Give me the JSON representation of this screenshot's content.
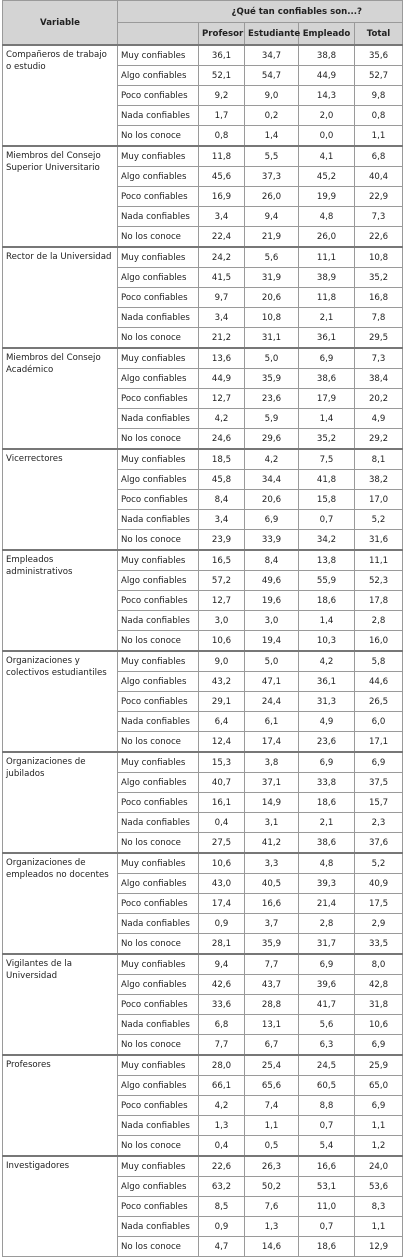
{
  "table": {
    "header": {
      "variable": "Variable",
      "question": "¿Qué tan confiables son...?",
      "columns": [
        "Profesor",
        "Estudiante",
        "Empleado",
        "Total"
      ]
    },
    "groups": [
      {
        "name": "Compañeros de trabajo o estudio",
        "rows": [
          [
            "Muy confiables",
            "36,1",
            "34,7",
            "38,8",
            "35,6"
          ],
          [
            "Algo confiables",
            "52,1",
            "54,7",
            "44,9",
            "52,7"
          ],
          [
            "Poco confiables",
            "9,2",
            "9,0",
            "14,3",
            "9,8"
          ],
          [
            "Nada confiables",
            "1,7",
            "0,2",
            "2,0",
            "0,8"
          ],
          [
            "No los conoce",
            "0,8",
            "1,4",
            "0,0",
            "1,1"
          ]
        ]
      },
      {
        "name": "Miembros del Consejo Superior Universitario",
        "rows": [
          [
            "Muy confiables",
            "11,8",
            "5,5",
            "4,1",
            "6,8"
          ],
          [
            "Algo confiables",
            "45,6",
            "37,3",
            "45,2",
            "40,4"
          ],
          [
            "Poco confiables",
            "16,9",
            "26,0",
            "19,9",
            "22,9"
          ],
          [
            "Nada confiables",
            "3,4",
            "9,4",
            "4,8",
            "7,3"
          ],
          [
            "No los conoce",
            "22,4",
            "21,9",
            "26,0",
            "22,6"
          ]
        ]
      },
      {
        "name": "Rector de la Universidad",
        "rows": [
          [
            "Muy confiables",
            "24,2",
            "5,6",
            "11,1",
            "10,8"
          ],
          [
            "Algo confiables",
            "41,5",
            "31,9",
            "38,9",
            "35,2"
          ],
          [
            "Poco confiables",
            "9,7",
            "20,6",
            "11,8",
            "16,8"
          ],
          [
            "Nada confiables",
            "3,4",
            "10,8",
            "2,1",
            "7,8"
          ],
          [
            "No los conoce",
            "21,2",
            "31,1",
            "36,1",
            "29,5"
          ]
        ]
      },
      {
        "name": "Miembros del Consejo Académico",
        "rows": [
          [
            "Muy confiables",
            "13,6",
            "5,0",
            "6,9",
            "7,3"
          ],
          [
            "Algo confiables",
            "44,9",
            "35,9",
            "38,6",
            "38,4"
          ],
          [
            "Poco confiables",
            "12,7",
            "23,6",
            "17,9",
            "20,2"
          ],
          [
            "Nada confiables",
            "4,2",
            "5,9",
            "1,4",
            "4,9"
          ],
          [
            "No los conoce",
            "24,6",
            "29,6",
            "35,2",
            "29,2"
          ]
        ]
      },
      {
        "name": "Vicerrectores",
        "rows": [
          [
            "Muy confiables",
            "18,5",
            "4,2",
            "7,5",
            "8,1"
          ],
          [
            "Algo confiables",
            "45,8",
            "34,4",
            "41,8",
            "38,2"
          ],
          [
            "Poco confiables",
            "8,4",
            "20,6",
            "15,8",
            "17,0"
          ],
          [
            "Nada confiables",
            "3,4",
            "6,9",
            "0,7",
            "5,2"
          ],
          [
            "No los conoce",
            "23,9",
            "33,9",
            "34,2",
            "31,6"
          ]
        ]
      },
      {
        "name": "Empleados administrativos",
        "rows": [
          [
            "Muy confiables",
            "16,5",
            "8,4",
            "13,8",
            "11,1"
          ],
          [
            "Algo confiables",
            "57,2",
            "49,6",
            "55,9",
            "52,3"
          ],
          [
            "Poco confiables",
            "12,7",
            "19,6",
            "18,6",
            "17,8"
          ],
          [
            "Nada confiables",
            "3,0",
            "3,0",
            "1,4",
            "2,8"
          ],
          [
            "No los conoce",
            "10,6",
            "19,4",
            "10,3",
            "16,0"
          ]
        ]
      },
      {
        "name": "Organizaciones y colectivos estudiantiles",
        "rows": [
          [
            "Muy confiables",
            "9,0",
            "5,0",
            "4,2",
            "5,8"
          ],
          [
            "Algo confiables",
            "43,2",
            "47,1",
            "36,1",
            "44,6"
          ],
          [
            "Poco confiables",
            "29,1",
            "24,4",
            "31,3",
            "26,5"
          ],
          [
            "Nada confiables",
            "6,4",
            "6,1",
            "4,9",
            "6,0"
          ],
          [
            "No los conoce",
            "12,4",
            "17,4",
            "23,6",
            "17,1"
          ]
        ]
      },
      {
        "name": "Organizaciones de jubilados",
        "rows": [
          [
            "Muy confiables",
            "15,3",
            "3,8",
            "6,9",
            "6,9"
          ],
          [
            "Algo confiables",
            "40,7",
            "37,1",
            "33,8",
            "37,5"
          ],
          [
            "Poco confiables",
            "16,1",
            "14,9",
            "18,6",
            "15,7"
          ],
          [
            "Nada confiables",
            "0,4",
            "3,1",
            "2,1",
            "2,3"
          ],
          [
            "No los conoce",
            "27,5",
            "41,2",
            "38,6",
            "37,6"
          ]
        ]
      },
      {
        "name": "Organizaciones de empleados no docentes",
        "rows": [
          [
            "Muy confiables",
            "10,6",
            "3,3",
            "4,8",
            "5,2"
          ],
          [
            "Algo confiables",
            "43,0",
            "40,5",
            "39,3",
            "40,9"
          ],
          [
            "Poco confiables",
            "17,4",
            "16,6",
            "21,4",
            "17,5"
          ],
          [
            "Nada confiables",
            "0,9",
            "3,7",
            "2,8",
            "2,9"
          ],
          [
            "No los conoce",
            "28,1",
            "35,9",
            "31,7",
            "33,5"
          ]
        ]
      },
      {
        "name": "Vigilantes de la Universidad",
        "rows": [
          [
            "Muy confiables",
            "9,4",
            "7,7",
            "6,9",
            "8,0"
          ],
          [
            "Algo confiables",
            "42,6",
            "43,7",
            "39,6",
            "42,8"
          ],
          [
            "Poco confiables",
            "33,6",
            "28,8",
            "41,7",
            "31,8"
          ],
          [
            "Nada confiables",
            "6,8",
            "13,1",
            "5,6",
            "10,6"
          ],
          [
            "No los conoce",
            "7,7",
            "6,7",
            "6,3",
            "6,9"
          ]
        ]
      },
      {
        "name": "Profesores",
        "rows": [
          [
            "Muy confiables",
            "28,0",
            "25,4",
            "24,5",
            "25,9"
          ],
          [
            "Algo confiables",
            "66,1",
            "65,6",
            "60,5",
            "65,0"
          ],
          [
            "Poco confiables",
            "4,2",
            "7,4",
            "8,8",
            "6,9"
          ],
          [
            "Nada confiables",
            "1,3",
            "1,1",
            "0,7",
            "1,1"
          ],
          [
            "No los conoce",
            "0,4",
            "0,5",
            "5,4",
            "1,2"
          ]
        ]
      },
      {
        "name": "Investigadores",
        "rows": [
          [
            "Muy confiables",
            "22,6",
            "26,3",
            "16,6",
            "24,0"
          ],
          [
            "Algo confiables",
            "63,2",
            "50,2",
            "53,1",
            "53,6"
          ],
          [
            "Poco confiables",
            "8,5",
            "7,6",
            "11,0",
            "8,3"
          ],
          [
            "Nada confiables",
            "0,9",
            "1,3",
            "0,7",
            "1,1"
          ],
          [
            "No los conoce",
            "4,7",
            "14,6",
            "18,6",
            "12,9"
          ]
        ]
      }
    ]
  }
}
